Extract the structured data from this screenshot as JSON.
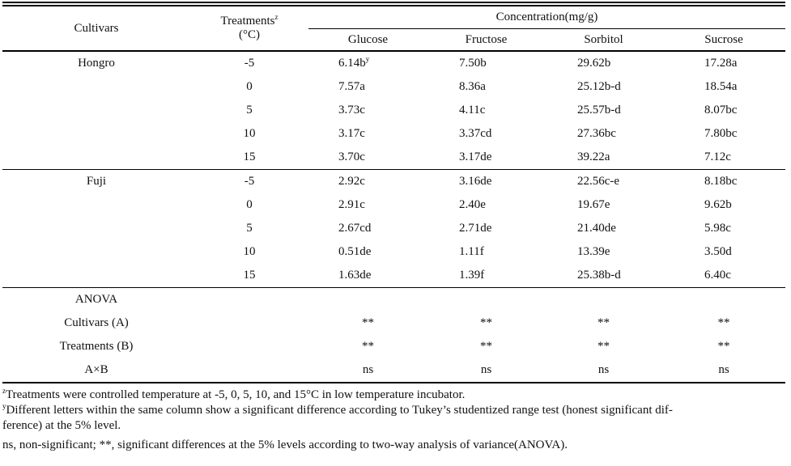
{
  "table": {
    "header": {
      "cultivars": "Cultivars",
      "treatments": "Treatments",
      "treatments_sup": "z",
      "treatments_unit": "(°C)",
      "concentration": "Concentration(mg/g)",
      "sugars": [
        "Glucose",
        "Fructose",
        "Sorbitol",
        "Sucrose"
      ]
    },
    "sections": [
      {
        "cultivar": "Hongro",
        "rows": [
          {
            "treatment": "-5",
            "values": [
              "6.14b^y",
              "7.50b",
              "29.62b",
              "17.28a"
            ]
          },
          {
            "treatment": "0",
            "values": [
              "7.57a",
              "8.36a",
              "25.12b-d",
              "18.54a"
            ]
          },
          {
            "treatment": "5",
            "values": [
              "3.73c",
              "4.11c",
              "25.57b-d",
              "8.07bc"
            ]
          },
          {
            "treatment": "10",
            "values": [
              "3.17c",
              "3.37cd",
              "27.36bc",
              "7.80bc"
            ]
          },
          {
            "treatment": "15",
            "values": [
              "3.70c",
              "3.17de",
              "39.22a",
              "7.12c"
            ]
          }
        ]
      },
      {
        "cultivar": "Fuji",
        "rows": [
          {
            "treatment": "-5",
            "values": [
              "2.92c",
              "3.16de",
              "22.56c-e",
              "8.18bc"
            ]
          },
          {
            "treatment": "0",
            "values": [
              "2.91c",
              "2.40e",
              "19.67e",
              "9.62b"
            ]
          },
          {
            "treatment": "5",
            "values": [
              "2.67cd",
              "2.71de",
              "21.40de",
              "5.98c"
            ]
          },
          {
            "treatment": "10",
            "values": [
              "0.51de",
              "1.11f",
              "13.39e",
              "3.50d"
            ]
          },
          {
            "treatment": "15",
            "values": [
              "1.63de",
              "1.39f",
              "25.38b-d",
              "6.40c"
            ]
          }
        ]
      }
    ],
    "anova": {
      "title": "ANOVA",
      "rows": [
        {
          "label": "Cultivars (A)",
          "values": [
            "**",
            "**",
            "**",
            "**"
          ]
        },
        {
          "label": "Treatments (B)",
          "values": [
            "**",
            "**",
            "**",
            "**"
          ]
        },
        {
          "label": "A×B",
          "values": [
            "ns",
            "ns",
            "ns",
            "ns"
          ]
        }
      ]
    }
  },
  "footnotes": [
    {
      "sup": "z",
      "lines": [
        "Treatments were controlled temperature at -5, 0, 5, 10, and 15°C in low temperature incubator."
      ]
    },
    {
      "sup": "y",
      "lines": [
        "Different letters within the same column show a significant difference according to Tukey’s studentized range test (honest significant dif-",
        "ference) at the 5% level."
      ]
    },
    {
      "sup": "",
      "lines": [
        "ns, non-significant; **, significant differences at the 5% levels according to two-way analysis of variance(ANOVA)."
      ]
    }
  ],
  "colors": {
    "text": "#111111",
    "line": "#000000",
    "background": "#ffffff"
  }
}
